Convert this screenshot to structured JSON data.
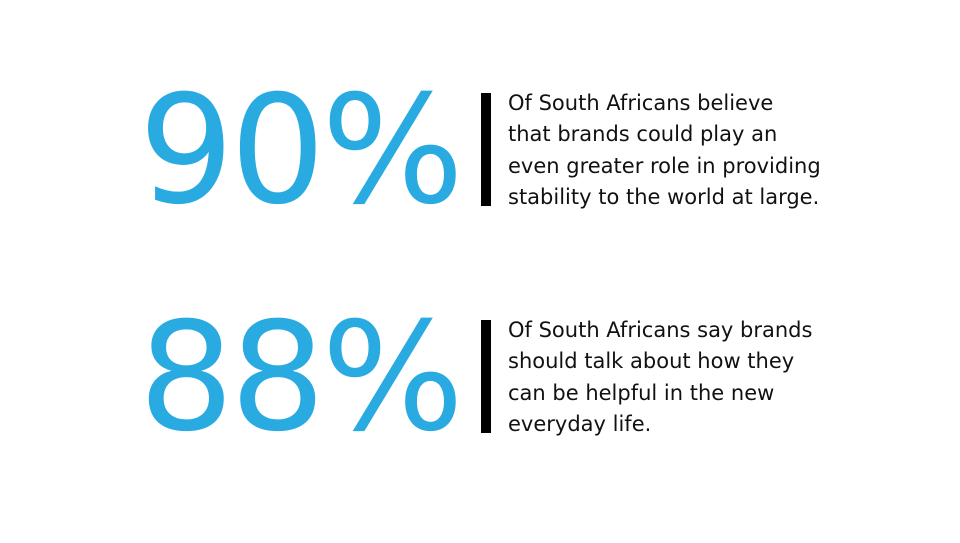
{
  "stats": [
    {
      "figure": "90%",
      "lines": [
        "Of South Africans believe",
        "that brands could play an",
        "even greater role in providing",
        "stability to the world at large."
      ]
    },
    {
      "figure": "88%",
      "lines": [
        "Of South Africans say brands",
        "should talk about how they",
        "can be helpful in the new",
        "everyday life."
      ]
    }
  ]
}
